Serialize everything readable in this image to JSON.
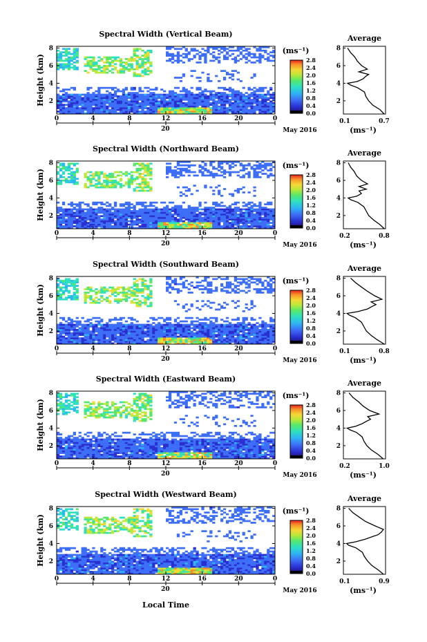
{
  "figure": {
    "xaxis_label": "Local Time",
    "date_label": "May 2016",
    "day_label": "20",
    "ylabel": "Height (km)",
    "cb_unit": "(ms⁻¹)",
    "avg_title": "Average",
    "avg_unit": "(ms⁻¹)"
  },
  "chart_data": [
    {
      "type": "heatmap",
      "title": "Spectral Width (Vertical Beam)",
      "xlabel": "Local Time",
      "ylabel": "Height (km)",
      "x_ticks": [
        "0",
        "4",
        "8",
        "12",
        "16",
        "20",
        "0"
      ],
      "y_ticks": [
        "2",
        "4",
        "6",
        "8"
      ],
      "xlim": [
        0,
        24
      ],
      "ylim": [
        0.5,
        8.2
      ],
      "colorbar_ticks": [
        "2.8",
        "2.4",
        "2.0",
        "1.6",
        "1.2",
        "0.8",
        "0.4",
        "0.0"
      ],
      "colorbar_range": [
        0,
        2.8
      ],
      "average": {
        "type": "line",
        "xlim": [
          0.1,
          0.7
        ],
        "x_ticks": [
          "0.1",
          "0.7"
        ],
        "y_ticks": [
          "2",
          "4",
          "6",
          "8"
        ],
        "height_km": [
          0.5,
          1.0,
          1.5,
          2.0,
          2.5,
          3.0,
          3.5,
          3.8,
          4.0,
          4.2,
          4.5,
          4.8,
          5.0,
          5.3,
          5.6,
          6.0,
          6.5,
          7.0,
          7.5,
          8.0
        ],
        "values": [
          0.68,
          0.62,
          0.52,
          0.46,
          0.42,
          0.4,
          0.3,
          0.2,
          0.16,
          0.3,
          0.38,
          0.42,
          0.46,
          0.32,
          0.44,
          0.36,
          0.3,
          0.26,
          0.2,
          0.16
        ]
      }
    },
    {
      "type": "heatmap",
      "title": "Spectral Width (Northward Beam)",
      "xlabel": "Local Time",
      "ylabel": "Height (km)",
      "x_ticks": [
        "0",
        "4",
        "8",
        "12",
        "16",
        "20",
        "0"
      ],
      "y_ticks": [
        "2",
        "4",
        "6",
        "8"
      ],
      "xlim": [
        0,
        24
      ],
      "ylim": [
        0.5,
        8.2
      ],
      "colorbar_ticks": [
        "2.8",
        "2.4",
        "2.0",
        "1.6",
        "1.2",
        "0.8",
        "0.4",
        "0.0"
      ],
      "colorbar_range": [
        0,
        2.8
      ],
      "average": {
        "type": "line",
        "xlim": [
          0.1,
          0.8
        ],
        "x_ticks": [
          "0.2",
          "0.8"
        ],
        "y_ticks": [
          "2",
          "4",
          "6",
          "8"
        ],
        "height_km": [
          0.5,
          1.0,
          1.5,
          2.0,
          2.5,
          3.0,
          3.5,
          3.8,
          4.0,
          4.2,
          4.5,
          4.8,
          5.0,
          5.3,
          5.6,
          6.0,
          6.5,
          7.0,
          7.5,
          8.0
        ],
        "values": [
          0.78,
          0.7,
          0.6,
          0.52,
          0.48,
          0.44,
          0.34,
          0.22,
          0.18,
          0.32,
          0.4,
          0.36,
          0.48,
          0.36,
          0.5,
          0.4,
          0.32,
          0.28,
          0.22,
          0.18
        ]
      }
    },
    {
      "type": "heatmap",
      "title": "Spectral Width (Southward Beam)",
      "xlabel": "Local Time",
      "ylabel": "Height (km)",
      "x_ticks": [
        "0",
        "4",
        "8",
        "12",
        "16",
        "20",
        "0"
      ],
      "y_ticks": [
        "2",
        "4",
        "6",
        "8"
      ],
      "xlim": [
        0,
        24
      ],
      "ylim": [
        0.5,
        8.2
      ],
      "colorbar_ticks": [
        "2.8",
        "2.4",
        "2.0",
        "1.6",
        "1.2",
        "0.8",
        "0.4",
        "0.0"
      ],
      "colorbar_range": [
        0,
        2.8
      ],
      "average": {
        "type": "line",
        "xlim": [
          0.1,
          0.8
        ],
        "x_ticks": [
          "0.1",
          "0.8"
        ],
        "y_ticks": [
          "2",
          "4",
          "6",
          "8"
        ],
        "height_km": [
          0.5,
          1.0,
          1.5,
          2.0,
          2.5,
          3.0,
          3.5,
          3.8,
          4.0,
          4.2,
          4.5,
          4.8,
          5.0,
          5.3,
          5.6,
          6.0,
          6.5,
          7.0,
          7.5,
          8.0
        ],
        "values": [
          0.78,
          0.66,
          0.56,
          0.48,
          0.44,
          0.4,
          0.3,
          0.2,
          0.16,
          0.34,
          0.5,
          0.58,
          0.64,
          0.56,
          0.74,
          0.62,
          0.5,
          0.4,
          0.3,
          0.22
        ]
      }
    },
    {
      "type": "heatmap",
      "title": "Spectral Width (Eastward Beam)",
      "xlabel": "Local Time",
      "ylabel": "Height (km)",
      "x_ticks": [
        "0",
        "4",
        "8",
        "12",
        "16",
        "20",
        "0"
      ],
      "y_ticks": [
        "2",
        "4",
        "6",
        "8"
      ],
      "xlim": [
        0,
        24
      ],
      "ylim": [
        0.5,
        8.2
      ],
      "colorbar_ticks": [
        "2.8",
        "2.4",
        "2.0",
        "1.6",
        "1.2",
        "0.8",
        "0.4",
        "0.0"
      ],
      "colorbar_range": [
        0,
        2.8
      ],
      "average": {
        "type": "line",
        "xlim": [
          0.1,
          1.0
        ],
        "x_ticks": [
          "0.2",
          "1.0"
        ],
        "y_ticks": [
          "2",
          "4",
          "6",
          "8"
        ],
        "height_km": [
          0.5,
          1.0,
          1.5,
          2.0,
          2.5,
          3.0,
          3.5,
          3.8,
          4.0,
          4.2,
          4.5,
          4.8,
          5.0,
          5.3,
          5.6,
          6.0,
          6.5,
          7.0,
          7.5,
          8.0
        ],
        "values": [
          0.95,
          0.84,
          0.7,
          0.6,
          0.54,
          0.5,
          0.38,
          0.24,
          0.18,
          0.36,
          0.5,
          0.6,
          0.68,
          0.62,
          0.86,
          0.66,
          0.52,
          0.42,
          0.3,
          0.22
        ]
      }
    },
    {
      "type": "heatmap",
      "title": "Spectral Width (Westward Beam)",
      "xlabel": "Local Time",
      "ylabel": "Height (km)",
      "x_ticks": [
        "0",
        "4",
        "8",
        "12",
        "16",
        "20",
        "0"
      ],
      "y_ticks": [
        "2",
        "4",
        "6",
        "8"
      ],
      "xlim": [
        0,
        24
      ],
      "ylim": [
        0.5,
        8.2
      ],
      "colorbar_ticks": [
        "2.8",
        "2.4",
        "2.0",
        "1.6",
        "1.2",
        "0.8",
        "0.4",
        "0.0"
      ],
      "colorbar_range": [
        0,
        2.8
      ],
      "average": {
        "type": "line",
        "xlim": [
          0.1,
          0.9
        ],
        "x_ticks": [
          "0.1",
          "0.9"
        ],
        "y_ticks": [
          "2",
          "4",
          "6",
          "8"
        ],
        "height_km": [
          0.5,
          1.0,
          1.5,
          2.0,
          2.5,
          3.0,
          3.5,
          3.8,
          4.0,
          4.2,
          4.5,
          4.8,
          5.0,
          5.3,
          5.6,
          6.0,
          6.5,
          7.0,
          7.5,
          8.0
        ],
        "values": [
          0.86,
          0.76,
          0.64,
          0.56,
          0.5,
          0.46,
          0.34,
          0.2,
          0.16,
          0.34,
          0.52,
          0.66,
          0.76,
          0.82,
          0.86,
          0.7,
          0.52,
          0.4,
          0.28,
          0.2
        ]
      }
    }
  ],
  "colors": {
    "colormap": [
      "#1a0d66",
      "#2a2fd0",
      "#3d6ef7",
      "#2fb5f3",
      "#2ee0c0",
      "#57e86a",
      "#b9e83a",
      "#f6d733",
      "#f7902a",
      "#e4201e"
    ]
  }
}
